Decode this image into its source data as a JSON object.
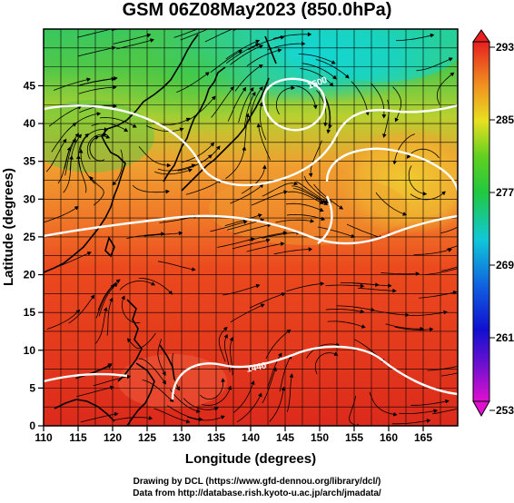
{
  "title": "GSM 06Z08May2023 (850.0hPa)",
  "x_axis": {
    "label": "Longitude (degrees)",
    "ticks": [
      "110",
      "115",
      "120",
      "125",
      "130",
      "135",
      "140",
      "145",
      "150",
      "155",
      "160",
      "165"
    ]
  },
  "y_axis": {
    "label": "Latitude  (degrees)",
    "ticks": [
      "0",
      "5",
      "10",
      "15",
      "20",
      "25",
      "30",
      "35",
      "40",
      "45"
    ]
  },
  "colorbar": {
    "ticks": [
      "293",
      "285",
      "277",
      "269",
      "261",
      "253"
    ]
  },
  "contour_labels": [
    "1440",
    "1500"
  ],
  "credits": {
    "line1": "Drawing by DCL (https://www.gfd-dennou.org/library/dcl/)",
    "line2": "Data from http://database.rish.kyoto-u.ac.jp/arch/jmadata/"
  },
  "colors": {
    "warm": "#e8321e",
    "mid": "#f0a030",
    "cool": "#38c838",
    "cold": "#10d8d8",
    "contour": "#ffffff",
    "coast": "#000000"
  }
}
